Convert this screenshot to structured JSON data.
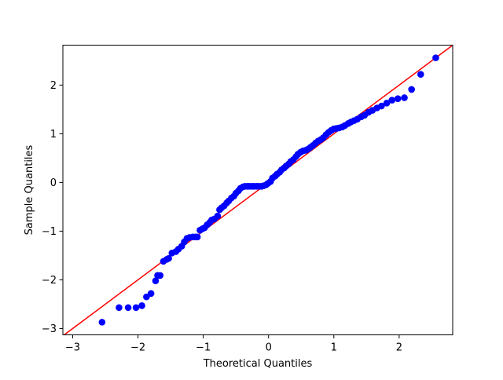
{
  "chart_data": {
    "type": "scatter",
    "title": "",
    "xlabel": "Theoretical Quantiles",
    "ylabel": "Sample Quantiles",
    "xlim": [
      -3.15,
      2.82
    ],
    "ylim": [
      -3.13,
      2.82
    ],
    "xticks": [
      -3,
      -2,
      -1,
      0,
      1,
      2
    ],
    "yticks": [
      -3,
      -2,
      -1,
      0,
      1,
      2
    ],
    "grid": false,
    "marker_color": "#0000ff",
    "line_color": "#ff0000",
    "reference_line": {
      "slope": 1,
      "intercept": 0
    },
    "x": [
      -2.55,
      -2.29,
      -2.15,
      -2.03,
      -1.94,
      -1.87,
      -1.8,
      -1.73,
      -1.7,
      -1.66,
      -1.61,
      -1.56,
      -1.53,
      -1.48,
      -1.42,
      -1.38,
      -1.33,
      -1.29,
      -1.25,
      -1.21,
      -1.16,
      -1.12,
      -1.09,
      -1.05,
      -1.01,
      -0.98,
      -0.94,
      -0.9,
      -0.87,
      -0.83,
      -0.78,
      -0.75,
      -0.72,
      -0.68,
      -0.64,
      -0.61,
      -0.57,
      -0.53,
      -0.5,
      -0.46,
      -0.43,
      -0.39,
      -0.36,
      -0.32,
      -0.29,
      -0.25,
      -0.22,
      -0.18,
      -0.15,
      -0.11,
      -0.08,
      -0.04,
      -0.01,
      0.03,
      0.06,
      0.1,
      0.13,
      0.17,
      0.2,
      0.24,
      0.27,
      0.31,
      0.34,
      0.38,
      0.42,
      0.45,
      0.49,
      0.53,
      0.57,
      0.6,
      0.64,
      0.68,
      0.72,
      0.76,
      0.8,
      0.84,
      0.88,
      0.92,
      0.96,
      1.0,
      1.04,
      1.08,
      1.13,
      1.17,
      1.22,
      1.26,
      1.31,
      1.36,
      1.42,
      1.47,
      1.53,
      1.59,
      1.66,
      1.73,
      1.81,
      1.89,
      1.98,
      2.08,
      2.19,
      2.33,
      2.56
    ],
    "y": [
      -2.87,
      -2.57,
      -2.57,
      -2.57,
      -2.53,
      -2.35,
      -2.28,
      -2.02,
      -1.91,
      -1.91,
      -1.62,
      -1.58,
      -1.56,
      -1.45,
      -1.42,
      -1.37,
      -1.31,
      -1.22,
      -1.15,
      -1.13,
      -1.12,
      -1.12,
      -1.12,
      -0.98,
      -0.95,
      -0.93,
      -0.87,
      -0.82,
      -0.77,
      -0.75,
      -0.69,
      -0.56,
      -0.52,
      -0.48,
      -0.42,
      -0.38,
      -0.32,
      -0.28,
      -0.22,
      -0.17,
      -0.12,
      -0.09,
      -0.08,
      -0.08,
      -0.08,
      -0.08,
      -0.08,
      -0.08,
      -0.08,
      -0.08,
      -0.07,
      -0.05,
      -0.02,
      0.02,
      0.09,
      0.13,
      0.17,
      0.21,
      0.26,
      0.3,
      0.34,
      0.38,
      0.43,
      0.47,
      0.53,
      0.58,
      0.62,
      0.65,
      0.66,
      0.68,
      0.72,
      0.76,
      0.81,
      0.85,
      0.88,
      0.92,
      0.98,
      1.03,
      1.07,
      1.1,
      1.11,
      1.12,
      1.14,
      1.17,
      1.21,
      1.24,
      1.27,
      1.3,
      1.35,
      1.38,
      1.44,
      1.48,
      1.53,
      1.57,
      1.63,
      1.69,
      1.72,
      1.74,
      1.91,
      2.22,
      2.56
    ]
  }
}
